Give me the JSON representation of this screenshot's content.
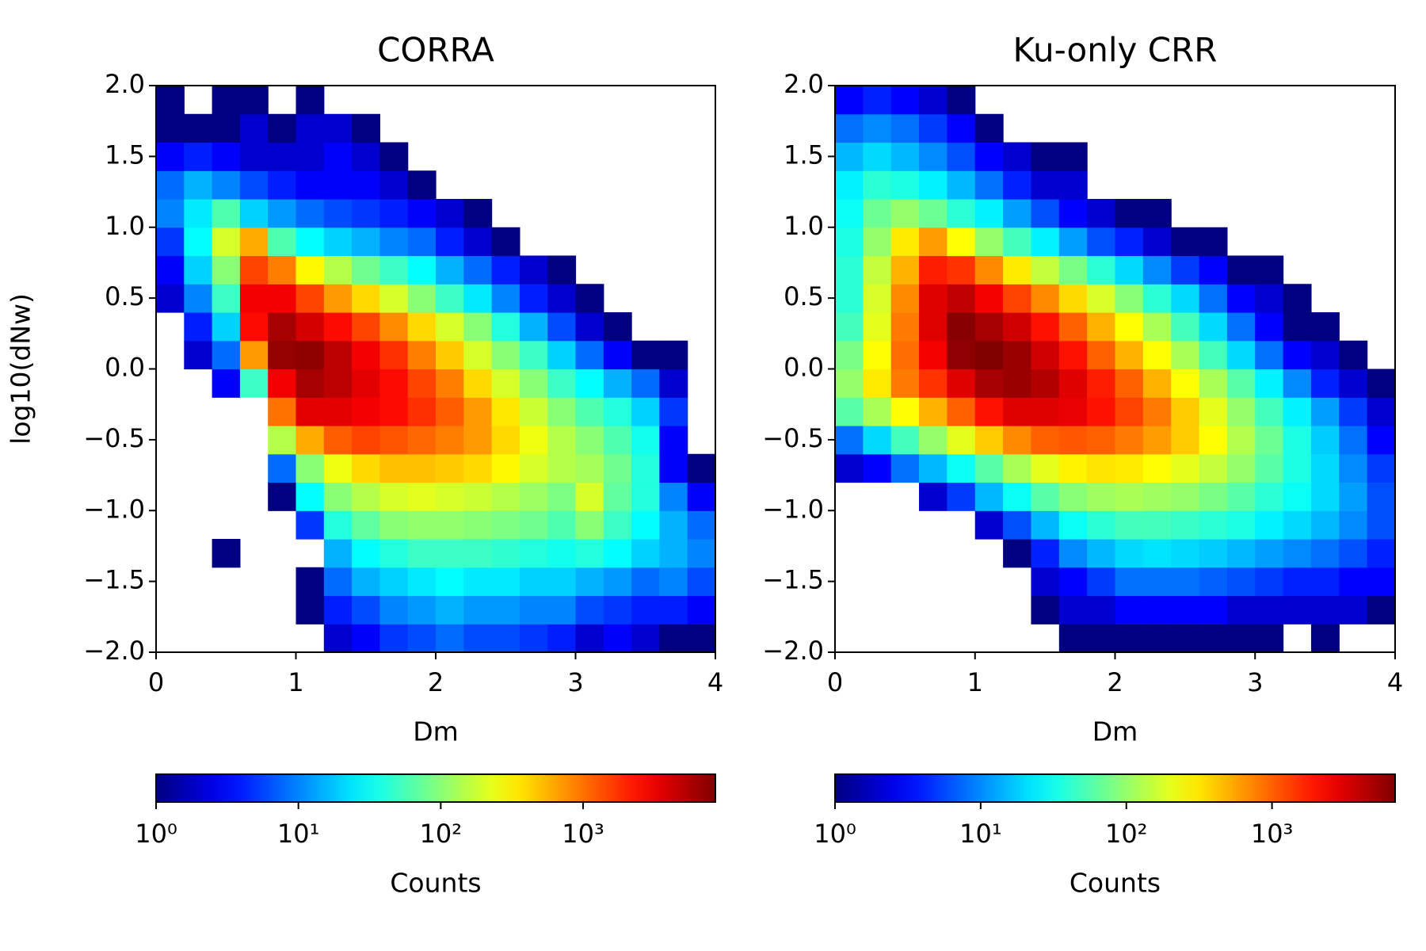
{
  "chart_data": [
    {
      "type": "heatmap",
      "title": "CORRA",
      "xlabel": "Dm",
      "ylabel": "log10(dNw)",
      "colormap": "jet",
      "xbins": [
        0,
        0.2,
        0.4,
        0.6,
        0.8,
        1,
        1.2,
        1.4,
        1.6,
        1.8,
        2,
        2.2,
        2.4,
        2.6,
        2.8,
        3,
        3.2,
        3.4,
        3.6,
        3.8,
        4
      ],
      "ybins": [
        -2,
        -1.8,
        -1.6,
        -1.4,
        -1.2,
        -1,
        -0.8,
        -0.6,
        -0.4,
        -0.2,
        0,
        0.2,
        0.4,
        0.6,
        0.8,
        1,
        1.2,
        1.4,
        1.6,
        1.8,
        2
      ],
      "counts": [
        [
          0,
          0,
          0,
          0,
          0,
          0,
          2,
          3,
          5,
          6,
          8,
          6,
          6,
          5,
          4,
          2,
          3,
          2,
          1,
          1
        ],
        [
          0,
          0,
          0,
          0,
          0,
          1,
          4,
          6,
          10,
          12,
          15,
          12,
          12,
          10,
          10,
          6,
          5,
          4,
          4,
          3
        ],
        [
          0,
          0,
          0,
          0,
          0,
          1,
          8,
          15,
          20,
          25,
          30,
          25,
          25,
          20,
          20,
          15,
          12,
          8,
          10,
          6
        ],
        [
          0,
          0,
          1,
          0,
          0,
          0,
          15,
          30,
          40,
          50,
          50,
          50,
          45,
          40,
          35,
          40,
          30,
          20,
          15,
          10
        ],
        [
          0,
          0,
          0,
          0,
          0,
          5,
          40,
          70,
          100,
          110,
          110,
          100,
          90,
          80,
          60,
          100,
          50,
          30,
          15,
          8
        ],
        [
          0,
          0,
          0,
          0,
          1,
          30,
          100,
          150,
          200,
          220,
          200,
          180,
          150,
          120,
          90,
          200,
          70,
          40,
          10,
          3
        ],
        [
          0,
          0,
          0,
          0,
          8,
          100,
          250,
          400,
          500,
          500,
          450,
          400,
          300,
          200,
          150,
          130,
          80,
          40,
          3,
          1
        ],
        [
          0,
          0,
          0,
          0,
          150,
          600,
          1200,
          1500,
          1300,
          1100,
          900,
          700,
          400,
          250,
          150,
          100,
          60,
          35,
          3,
          0
        ],
        [
          0,
          0,
          0,
          0,
          1000,
          3500,
          3500,
          3000,
          2500,
          1800,
          1200,
          700,
          350,
          180,
          100,
          60,
          40,
          20,
          5,
          0
        ],
        [
          0,
          0,
          3,
          50,
          3000,
          6000,
          5000,
          3500,
          2500,
          1500,
          900,
          400,
          200,
          100,
          50,
          30,
          15,
          8,
          2,
          0
        ],
        [
          0,
          2,
          8,
          700,
          7000,
          7500,
          5000,
          3000,
          1800,
          900,
          450,
          200,
          100,
          50,
          20,
          8,
          3,
          1,
          1,
          0
        ],
        [
          0,
          4,
          20,
          2500,
          6000,
          4000,
          2500,
          1500,
          800,
          400,
          200,
          100,
          40,
          15,
          6,
          2,
          1,
          0,
          0,
          0
        ],
        [
          2,
          10,
          50,
          3000,
          3000,
          1500,
          700,
          400,
          200,
          100,
          50,
          25,
          10,
          4,
          2,
          1,
          0,
          0,
          0,
          0
        ],
        [
          3,
          20,
          100,
          1500,
          900,
          300,
          150,
          80,
          50,
          30,
          15,
          8,
          4,
          2,
          1,
          0,
          0,
          0,
          0,
          0
        ],
        [
          5,
          30,
          200,
          600,
          60,
          30,
          20,
          15,
          10,
          8,
          4,
          2,
          1,
          0,
          0,
          0,
          0,
          0,
          0,
          0
        ],
        [
          10,
          25,
          60,
          20,
          12,
          8,
          6,
          5,
          4,
          3,
          2,
          1,
          0,
          0,
          0,
          0,
          0,
          0,
          0,
          0
        ],
        [
          8,
          15,
          10,
          6,
          4,
          3,
          3,
          3,
          2,
          1,
          0,
          0,
          0,
          0,
          0,
          0,
          0,
          0,
          0,
          0
        ],
        [
          3,
          4,
          3,
          2,
          2,
          2,
          3,
          2,
          1,
          0,
          0,
          0,
          0,
          0,
          0,
          0,
          0,
          0,
          0,
          0
        ],
        [
          1,
          1,
          1,
          2,
          1,
          2,
          2,
          1,
          0,
          0,
          0,
          0,
          0,
          0,
          0,
          0,
          0,
          0,
          0,
          0
        ],
        [
          1,
          0,
          1,
          1,
          0,
          1,
          0,
          0,
          0,
          0,
          0,
          0,
          0,
          0,
          0,
          0,
          0,
          0,
          0,
          0
        ]
      ],
      "xlim": [
        0,
        4
      ],
      "ylim": [
        -2,
        2
      ],
      "xticks": [
        0,
        1,
        2,
        3,
        4
      ],
      "yticks": [
        {
          "value": -2,
          "label": "−2.0"
        },
        {
          "value": -1.5,
          "label": "−1.5"
        },
        {
          "value": -1,
          "label": "−1.0"
        },
        {
          "value": -0.5,
          "label": "−0.5"
        },
        {
          "value": 0,
          "label": "0.0"
        },
        {
          "value": 0.5,
          "label": "0.5"
        },
        {
          "value": 1,
          "label": "1.0"
        },
        {
          "value": 1.5,
          "label": "1.5"
        },
        {
          "value": 2,
          "label": "2.0"
        }
      ],
      "colorbar": {
        "label": "Counts",
        "scale": "log",
        "lim": [
          1,
          8500
        ],
        "ticks": [
          {
            "value": 1,
            "label": "10⁰"
          },
          {
            "value": 10,
            "label": "10¹"
          },
          {
            "value": 100,
            "label": "10²"
          },
          {
            "value": 1000,
            "label": "10³"
          }
        ]
      }
    },
    {
      "type": "heatmap",
      "title": "Ku-only CRR",
      "xlabel": "Dm",
      "colormap": "jet",
      "xbins": [
        0,
        0.2,
        0.4,
        0.6,
        0.8,
        1,
        1.2,
        1.4,
        1.6,
        1.8,
        2,
        2.2,
        2.4,
        2.6,
        2.8,
        3,
        3.2,
        3.4,
        3.6,
        3.8,
        4
      ],
      "ybins": [
        -2,
        -1.8,
        -1.6,
        -1.4,
        -1.2,
        -1,
        -0.8,
        -0.6,
        -0.4,
        -0.2,
        0,
        0.2,
        0.4,
        0.6,
        0.8,
        1,
        1.2,
        1.4,
        1.6,
        1.8,
        2
      ],
      "counts": [
        [
          0,
          0,
          0,
          0,
          0,
          0,
          0,
          0,
          1,
          1,
          1,
          1,
          1,
          1,
          1,
          1,
          0,
          1,
          0,
          0
        ],
        [
          0,
          0,
          0,
          0,
          0,
          0,
          0,
          1,
          2,
          2,
          3,
          3,
          3,
          3,
          2,
          2,
          2,
          2,
          2,
          1
        ],
        [
          0,
          0,
          0,
          0,
          0,
          0,
          0,
          2,
          3,
          5,
          8,
          8,
          8,
          7,
          6,
          5,
          4,
          4,
          3,
          3
        ],
        [
          0,
          0,
          0,
          0,
          0,
          0,
          1,
          4,
          10,
          15,
          20,
          22,
          20,
          18,
          15,
          12,
          10,
          8,
          6,
          4
        ],
        [
          0,
          0,
          0,
          0,
          0,
          2,
          6,
          15,
          30,
          40,
          50,
          50,
          45,
          40,
          35,
          25,
          20,
          15,
          10,
          6
        ],
        [
          0,
          0,
          0,
          2,
          5,
          15,
          30,
          60,
          90,
          110,
          120,
          110,
          100,
          80,
          60,
          40,
          30,
          20,
          12,
          6
        ],
        [
          2,
          3,
          8,
          15,
          30,
          60,
          120,
          200,
          280,
          320,
          300,
          250,
          200,
          150,
          100,
          60,
          35,
          20,
          10,
          5
        ],
        [
          8,
          20,
          50,
          100,
          200,
          400,
          700,
          1000,
          1100,
          1000,
          800,
          600,
          400,
          250,
          130,
          70,
          35,
          18,
          8,
          3
        ],
        [
          60,
          120,
          250,
          500,
          1000,
          2000,
          3000,
          3000,
          2800,
          2000,
          1300,
          800,
          400,
          200,
          100,
          50,
          25,
          12,
          5,
          2
        ],
        [
          100,
          300,
          800,
          1500,
          3000,
          5000,
          5500,
          4500,
          3000,
          1800,
          1000,
          500,
          250,
          120,
          60,
          25,
          10,
          4,
          2,
          1
        ],
        [
          80,
          250,
          900,
          2500,
          6000,
          7000,
          5500,
          3500,
          2000,
          1000,
          500,
          250,
          120,
          50,
          20,
          8,
          3,
          2,
          1,
          0
        ],
        [
          50,
          200,
          800,
          3000,
          6500,
          5000,
          3500,
          2000,
          1000,
          500,
          250,
          120,
          50,
          20,
          8,
          3,
          1,
          1,
          0,
          0
        ],
        [
          40,
          180,
          700,
          3000,
          4000,
          2500,
          1300,
          700,
          350,
          180,
          90,
          40,
          20,
          8,
          3,
          2,
          1,
          0,
          0,
          0
        ],
        [
          40,
          150,
          500,
          1800,
          1500,
          700,
          300,
          150,
          80,
          40,
          20,
          10,
          5,
          3,
          1,
          1,
          0,
          0,
          0,
          0
        ],
        [
          35,
          100,
          300,
          600,
          250,
          100,
          50,
          25,
          12,
          6,
          4,
          2,
          1,
          1,
          0,
          0,
          0,
          0,
          0,
          0
        ],
        [
          30,
          70,
          100,
          70,
          40,
          25,
          12,
          6,
          3,
          2,
          1,
          1,
          0,
          0,
          0,
          0,
          0,
          0,
          0,
          0
        ],
        [
          25,
          40,
          35,
          25,
          15,
          8,
          4,
          2,
          2,
          0,
          0,
          0,
          0,
          0,
          0,
          0,
          0,
          0,
          0,
          0
        ],
        [
          15,
          20,
          15,
          10,
          6,
          3,
          2,
          1,
          1,
          0,
          0,
          0,
          0,
          0,
          0,
          0,
          0,
          0,
          0,
          0
        ],
        [
          8,
          10,
          8,
          5,
          3,
          1,
          0,
          0,
          0,
          0,
          0,
          0,
          0,
          0,
          0,
          0,
          0,
          0,
          0,
          0
        ],
        [
          3,
          4,
          3,
          2,
          1,
          0,
          0,
          0,
          0,
          0,
          0,
          0,
          0,
          0,
          0,
          0,
          0,
          0,
          0,
          0
        ]
      ],
      "xlim": [
        0,
        4
      ],
      "ylim": [
        -2,
        2
      ],
      "xticks": [
        0,
        1,
        2,
        3,
        4
      ],
      "yticks": [
        {
          "value": -2,
          "label": "−2.0"
        },
        {
          "value": -1.5,
          "label": "−1.5"
        },
        {
          "value": -1,
          "label": "−1.0"
        },
        {
          "value": -0.5,
          "label": "−0.5"
        },
        {
          "value": 0,
          "label": "0.0"
        },
        {
          "value": 0.5,
          "label": "0.5"
        },
        {
          "value": 1,
          "label": "1.0"
        },
        {
          "value": 1.5,
          "label": "1.5"
        },
        {
          "value": 2,
          "label": "2.0"
        }
      ],
      "colorbar": {
        "label": "Counts",
        "scale": "log",
        "lim": [
          1,
          7000
        ],
        "ticks": [
          {
            "value": 1,
            "label": "10⁰"
          },
          {
            "value": 10,
            "label": "10¹"
          },
          {
            "value": 100,
            "label": "10²"
          },
          {
            "value": 1000,
            "label": "10³"
          }
        ]
      }
    }
  ]
}
